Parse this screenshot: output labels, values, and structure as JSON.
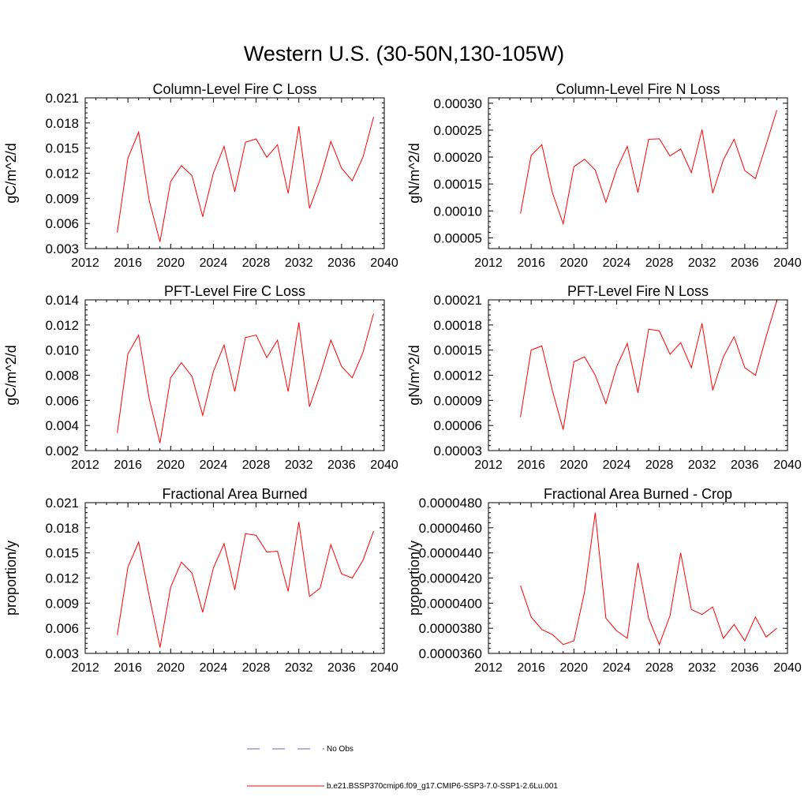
{
  "figure": {
    "title": "Western U.S. (30-50N,130-105W)"
  },
  "legend": {
    "obs_label": "No Obs",
    "obs_color": "#6a6aa0",
    "model_label": "b.e21.BSSP370cmip6.f09_g17.CMIP6-SSP3-7.0-SSP1-2.6Lu.001",
    "model_color": "#ff0000"
  },
  "chart_data": [
    {
      "type": "line",
      "title": "Column-Level Fire C Loss",
      "ylabel": "gC/m^2/d",
      "xlim": [
        2012,
        2040
      ],
      "xticks": [
        "2012",
        "2016",
        "2020",
        "2024",
        "2028",
        "2032",
        "2036",
        "2040"
      ],
      "ylim": [
        0.003,
        0.021
      ],
      "yticks": [
        "0.003",
        "0.006",
        "0.009",
        "0.012",
        "0.015",
        "0.018",
        "0.021"
      ],
      "x": [
        2015,
        2016,
        2017,
        2018,
        2019,
        2020,
        2021,
        2022,
        2023,
        2024,
        2025,
        2026,
        2027,
        2028,
        2029,
        2030,
        2031,
        2032,
        2033,
        2034,
        2035,
        2036,
        2037,
        2038,
        2039
      ],
      "series": [
        {
          "values": [
            0.0049,
            0.0138,
            0.0169,
            0.0087,
            0.0038,
            0.011,
            0.0129,
            0.0117,
            0.0068,
            0.012,
            0.0152,
            0.0098,
            0.0157,
            0.0161,
            0.0139,
            0.0154,
            0.0096,
            0.0176,
            0.0078,
            0.0113,
            0.0158,
            0.0126,
            0.0111,
            0.0139,
            0.0187
          ]
        }
      ]
    },
    {
      "type": "line",
      "title": "Column-Level Fire N Loss",
      "ylabel": "gN/m^2/d",
      "xlim": [
        2012,
        2040
      ],
      "xticks": [
        "2012",
        "2016",
        "2020",
        "2024",
        "2028",
        "2032",
        "2036",
        "2040"
      ],
      "ylim": [
        3e-05,
        0.00031
      ],
      "yticks": [
        "0.00005",
        "0.00010",
        "0.00015",
        "0.00020",
        "0.00025",
        "0.00030"
      ],
      "x": [
        2015,
        2016,
        2017,
        2018,
        2019,
        2020,
        2021,
        2022,
        2023,
        2024,
        2025,
        2026,
        2027,
        2028,
        2029,
        2030,
        2031,
        2032,
        2033,
        2034,
        2035,
        2036,
        2037,
        2038,
        2039
      ],
      "series": [
        {
          "values": [
            9.5e-05,
            0.000203,
            0.000223,
            0.000133,
            7.6e-05,
            0.000182,
            0.000196,
            0.000176,
            0.000116,
            0.000177,
            0.00022,
            0.000134,
            0.000233,
            0.000234,
            0.000202,
            0.000215,
            0.000171,
            0.000251,
            0.000133,
            0.000195,
            0.000233,
            0.000175,
            0.00016,
            0.000223,
            0.000287
          ]
        }
      ]
    },
    {
      "type": "line",
      "title": "PFT-Level Fire C Loss",
      "ylabel": "gC/m^2/d",
      "xlim": [
        2012,
        2040
      ],
      "xticks": [
        "2012",
        "2016",
        "2020",
        "2024",
        "2028",
        "2032",
        "2036",
        "2040"
      ],
      "ylim": [
        0.002,
        0.014
      ],
      "yticks": [
        "0.002",
        "0.004",
        "0.006",
        "0.008",
        "0.010",
        "0.012",
        "0.014"
      ],
      "x": [
        2015,
        2016,
        2017,
        2018,
        2019,
        2020,
        2021,
        2022,
        2023,
        2024,
        2025,
        2026,
        2027,
        2028,
        2029,
        2030,
        2031,
        2032,
        2033,
        2034,
        2035,
        2036,
        2037,
        2038,
        2039
      ],
      "series": [
        {
          "values": [
            0.0034,
            0.0097,
            0.0112,
            0.0061,
            0.0026,
            0.0078,
            0.009,
            0.0079,
            0.0048,
            0.0083,
            0.0104,
            0.0067,
            0.011,
            0.0112,
            0.0094,
            0.0108,
            0.0067,
            0.0122,
            0.0055,
            0.008,
            0.0108,
            0.0087,
            0.0078,
            0.0098,
            0.0129
          ]
        }
      ]
    },
    {
      "type": "line",
      "title": "PFT-Level Fire N Loss",
      "ylabel": "gN/m^2/d",
      "xlim": [
        2012,
        2040
      ],
      "xticks": [
        "2012",
        "2016",
        "2020",
        "2024",
        "2028",
        "2032",
        "2036",
        "2040"
      ],
      "ylim": [
        3e-05,
        0.00021
      ],
      "yticks": [
        "0.00003",
        "0.00006",
        "0.00009",
        "0.00012",
        "0.00015",
        "0.00018",
        "0.00021"
      ],
      "x": [
        2015,
        2016,
        2017,
        2018,
        2019,
        2020,
        2021,
        2022,
        2023,
        2024,
        2025,
        2026,
        2027,
        2028,
        2029,
        2030,
        2031,
        2032,
        2033,
        2034,
        2035,
        2036,
        2037,
        2038,
        2039
      ],
      "series": [
        {
          "values": [
            7e-05,
            0.00015,
            0.000155,
            0.000101,
            5.5e-05,
            0.000136,
            0.000142,
            0.00012,
            8.6e-05,
            0.00013,
            0.000158,
            9.9e-05,
            0.000175,
            0.000173,
            0.000145,
            0.000159,
            0.000129,
            0.000182,
            0.000102,
            0.000142,
            0.000166,
            0.000129,
            0.00012,
            0.000166,
            0.000209
          ]
        }
      ]
    },
    {
      "type": "line",
      "title": "Fractional Area Burned",
      "ylabel": "proportion/y",
      "xlim": [
        2012,
        2040
      ],
      "xticks": [
        "2012",
        "2016",
        "2020",
        "2024",
        "2028",
        "2032",
        "2036",
        "2040"
      ],
      "ylim": [
        0.003,
        0.021
      ],
      "yticks": [
        "0.003",
        "0.006",
        "0.009",
        "0.012",
        "0.015",
        "0.018",
        "0.021"
      ],
      "x": [
        2015,
        2016,
        2017,
        2018,
        2019,
        2020,
        2021,
        2022,
        2023,
        2024,
        2025,
        2026,
        2027,
        2028,
        2029,
        2030,
        2031,
        2032,
        2033,
        2034,
        2035,
        2036,
        2037,
        2038,
        2039
      ],
      "series": [
        {
          "values": [
            0.0052,
            0.0133,
            0.0163,
            0.0098,
            0.0037,
            0.0109,
            0.0139,
            0.0126,
            0.0079,
            0.0132,
            0.0161,
            0.0106,
            0.0173,
            0.0171,
            0.0151,
            0.0152,
            0.0104,
            0.0187,
            0.0098,
            0.0108,
            0.016,
            0.0125,
            0.012,
            0.0141,
            0.0176
          ]
        }
      ]
    },
    {
      "type": "line",
      "title": "Fractional Area Burned - Crop",
      "ylabel": "proportion/y",
      "xlim": [
        2012,
        2040
      ],
      "xticks": [
        "2012",
        "2016",
        "2020",
        "2024",
        "2028",
        "2032",
        "2036",
        "2040"
      ],
      "ylim": [
        3.6e-05,
        4.8e-05
      ],
      "yticks": [
        "0.0000360",
        "0.0000380",
        "0.0000400",
        "0.0000420",
        "0.0000440",
        "0.0000460",
        "0.0000480"
      ],
      "x": [
        2015,
        2016,
        2017,
        2018,
        2019,
        2020,
        2021,
        2022,
        2023,
        2024,
        2025,
        2026,
        2027,
        2028,
        2029,
        2030,
        2031,
        2032,
        2033,
        2034,
        2035,
        2036,
        2037,
        2038,
        2039
      ],
      "series": [
        {
          "values": [
            4.14e-05,
            3.89e-05,
            3.79e-05,
            3.75e-05,
            3.67e-05,
            3.7e-05,
            4.09e-05,
            4.72e-05,
            3.88e-05,
            3.78e-05,
            3.72e-05,
            4.32e-05,
            3.88e-05,
            3.67e-05,
            3.9e-05,
            4.4e-05,
            3.95e-05,
            3.91e-05,
            3.97e-05,
            3.72e-05,
            3.83e-05,
            3.7e-05,
            3.89e-05,
            3.73e-05,
            3.8e-05
          ]
        }
      ]
    }
  ]
}
